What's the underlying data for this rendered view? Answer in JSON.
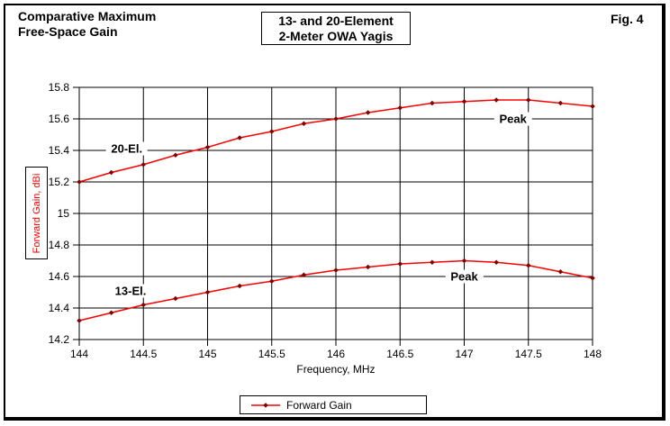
{
  "figure": {
    "title": "Comparative Maximum\nFree-Space Gain",
    "subtitle_box": "13- and 20-Element\n2-Meter OWA Yagis",
    "fig_label": "Fig. 4"
  },
  "chart_data": {
    "type": "line",
    "title": "Comparative Maximum Free-Space Gain",
    "subtitle": "13- and 20-Element 2-Meter OWA Yagis",
    "xlabel": "Frequency, MHz",
    "ylabel": "Forward Gain, dBi",
    "xlim": [
      144,
      148
    ],
    "ylim": [
      14.2,
      15.8
    ],
    "x_ticks": [
      144,
      144.5,
      145,
      145.5,
      146,
      146.5,
      147,
      147.5,
      148
    ],
    "y_ticks": [
      14.2,
      14.4,
      14.6,
      14.8,
      15,
      15.2,
      15.4,
      15.6,
      15.8
    ],
    "grid": true,
    "x": [
      144,
      144.25,
      144.5,
      144.75,
      145,
      145.25,
      145.5,
      145.75,
      146,
      146.25,
      146.5,
      146.75,
      147,
      147.25,
      147.5,
      147.75,
      148
    ],
    "series": [
      {
        "key": "20-el",
        "name": "20-El.",
        "values": [
          15.2,
          15.26,
          15.31,
          15.37,
          15.42,
          15.48,
          15.52,
          15.57,
          15.6,
          15.64,
          15.67,
          15.7,
          15.71,
          15.72,
          15.72,
          15.7,
          15.68
        ]
      },
      {
        "key": "13-el",
        "name": "13-El.",
        "values": [
          14.32,
          14.37,
          14.42,
          14.46,
          14.5,
          14.54,
          14.57,
          14.61,
          14.64,
          14.66,
          14.68,
          14.69,
          14.7,
          14.69,
          14.67,
          14.63,
          14.59
        ]
      }
    ],
    "annotations": [
      {
        "name": "series-label-20-el",
        "text": "20-El.",
        "x": 144.37,
        "y": 15.41
      },
      {
        "name": "series-label-13-el",
        "text": "13-El.",
        "x": 144.4,
        "y": 14.51
      },
      {
        "name": "peak-label-20-el",
        "text": "Peak",
        "x": 147.38,
        "y": 15.6
      },
      {
        "name": "peak-label-13-el",
        "text": "Peak",
        "x": 147.0,
        "y": 14.6
      }
    ],
    "legend": {
      "label": "Forward Gain",
      "position": "bottom"
    },
    "colors": {
      "line": "#ff0000",
      "marker": "#800000",
      "grid": "#000000",
      "text": "#000000",
      "y_axis_title": "#ff0000"
    }
  }
}
